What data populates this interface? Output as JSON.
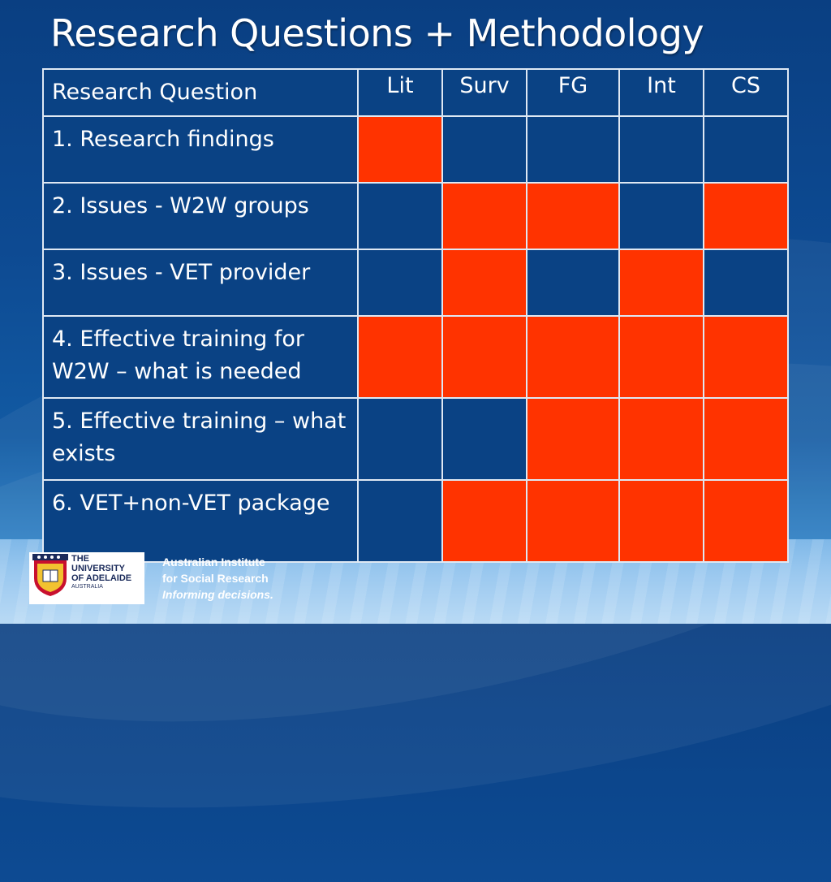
{
  "slide": {
    "title": "Research Questions + Methodology"
  },
  "table": {
    "headers": [
      "Research Question",
      "Lit",
      "Surv",
      "FG",
      "Int",
      "CS"
    ],
    "rows": [
      {
        "question": "1. Research findings",
        "marks": [
          true,
          false,
          false,
          false,
          false
        ]
      },
      {
        "question": "2. Issues - W2W groups",
        "marks": [
          false,
          true,
          true,
          false,
          true
        ]
      },
      {
        "question": "3. Issues - VET provider",
        "marks": [
          false,
          true,
          false,
          true,
          false
        ]
      },
      {
        "question": "4. Effective training for W2W – what is needed",
        "marks": [
          true,
          true,
          true,
          true,
          true
        ]
      },
      {
        "question": "5. Effective training – what exists",
        "marks": [
          false,
          false,
          true,
          true,
          true
        ]
      },
      {
        "question": "6. VET+non-VET package",
        "marks": [
          false,
          true,
          true,
          true,
          true
        ]
      }
    ],
    "colors": {
      "marked": "#ff3300",
      "unmarked": "#0a4284"
    }
  },
  "footer": {
    "university_logo": {
      "line1": "THE UNIVERSITY",
      "line2": "OF ADELAIDE",
      "line3": "AUSTRALIA"
    },
    "institute": {
      "line1": "Australian Institute",
      "line2": "for Social Research",
      "tagline": "Informing decisions."
    }
  }
}
